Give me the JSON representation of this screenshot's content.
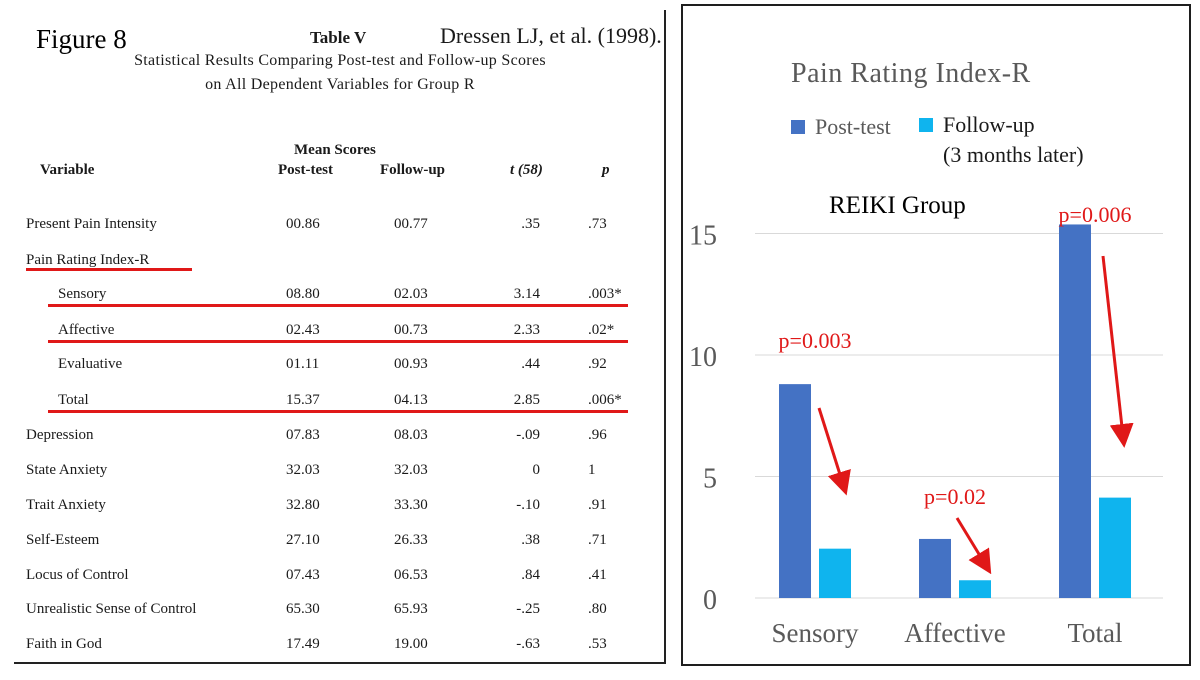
{
  "left_table": {
    "figure_label": "Figure 8",
    "table_title": "Table V",
    "citation": "Dressen LJ, et al. (1998).",
    "subtitle_line1": "Statistical Results Comparing Post-test and Follow-up Scores",
    "subtitle_line2": "on All Dependent Variables for Group R",
    "headers": {
      "mean_scores": "Mean Scores",
      "variable": "Variable",
      "post_test": "Post-test",
      "follow_up": "Follow-up",
      "t_stat": "t (58)",
      "p_value": "p"
    },
    "rows": [
      {
        "variable": "Present Pain Intensity",
        "post": "00.86",
        "follow": "00.77",
        "t": ".35",
        "p": ".73"
      },
      {
        "variable": "Pain Rating Index-R",
        "post": "",
        "follow": "",
        "t": "",
        "p": ""
      },
      {
        "variable": "Sensory",
        "post": "08.80",
        "follow": "02.03",
        "t": "3.14",
        "p": ".003*"
      },
      {
        "variable": "Affective",
        "post": "02.43",
        "follow": "00.73",
        "t": "2.33",
        "p": ".02*"
      },
      {
        "variable": "Evaluative",
        "post": "01.11",
        "follow": "00.93",
        "t": ".44",
        "p": ".92"
      },
      {
        "variable": "Total",
        "post": "15.37",
        "follow": "04.13",
        "t": "2.85",
        "p": ".006*"
      },
      {
        "variable": "Depression",
        "post": "07.83",
        "follow": "08.03",
        "t": "-.09",
        "p": ".96"
      },
      {
        "variable": "State Anxiety",
        "post": "32.03",
        "follow": "32.03",
        "t": "0",
        "p": "1"
      },
      {
        "variable": "Trait Anxiety",
        "post": "32.80",
        "follow": "33.30",
        "t": "-.10",
        "p": ".91"
      },
      {
        "variable": "Self-Esteem",
        "post": "27.10",
        "follow": "26.33",
        "t": ".38",
        "p": ".71"
      },
      {
        "variable": "Locus of Control",
        "post": "07.43",
        "follow": "06.53",
        "t": ".84",
        "p": ".41"
      },
      {
        "variable": "Unrealistic Sense of Control",
        "post": "65.30",
        "follow": "65.93",
        "t": "-.25",
        "p": ".80"
      },
      {
        "variable": "Faith in God",
        "post": "17.49",
        "follow": "19.00",
        "t": "-.63",
        "p": ".53"
      }
    ]
  },
  "chart_data": {
    "type": "bar",
    "title": "Pain Rating Index-R",
    "subtitle": "REIKI Group",
    "categories": [
      "Sensory",
      "Affective",
      "Total"
    ],
    "series": [
      {
        "name": "Post-test",
        "values": [
          8.8,
          2.43,
          15.37
        ],
        "color": "#4472c4"
      },
      {
        "name": "Follow-up",
        "name_line2": "(3 months later)",
        "values": [
          2.03,
          0.73,
          4.13
        ],
        "color": "#0fb4ee"
      }
    ],
    "annotations": [
      "p=0.003",
      "p=0.02",
      "p=0.006"
    ],
    "yticks": [
      0,
      5,
      10,
      15
    ],
    "ylim": [
      0,
      15.8
    ],
    "xlabel": "",
    "ylabel": "",
    "grid": true,
    "legend": "top"
  },
  "colors": {
    "annotation": "#e01818",
    "grid": "#d9d9d9",
    "tick_text": "#595959"
  }
}
